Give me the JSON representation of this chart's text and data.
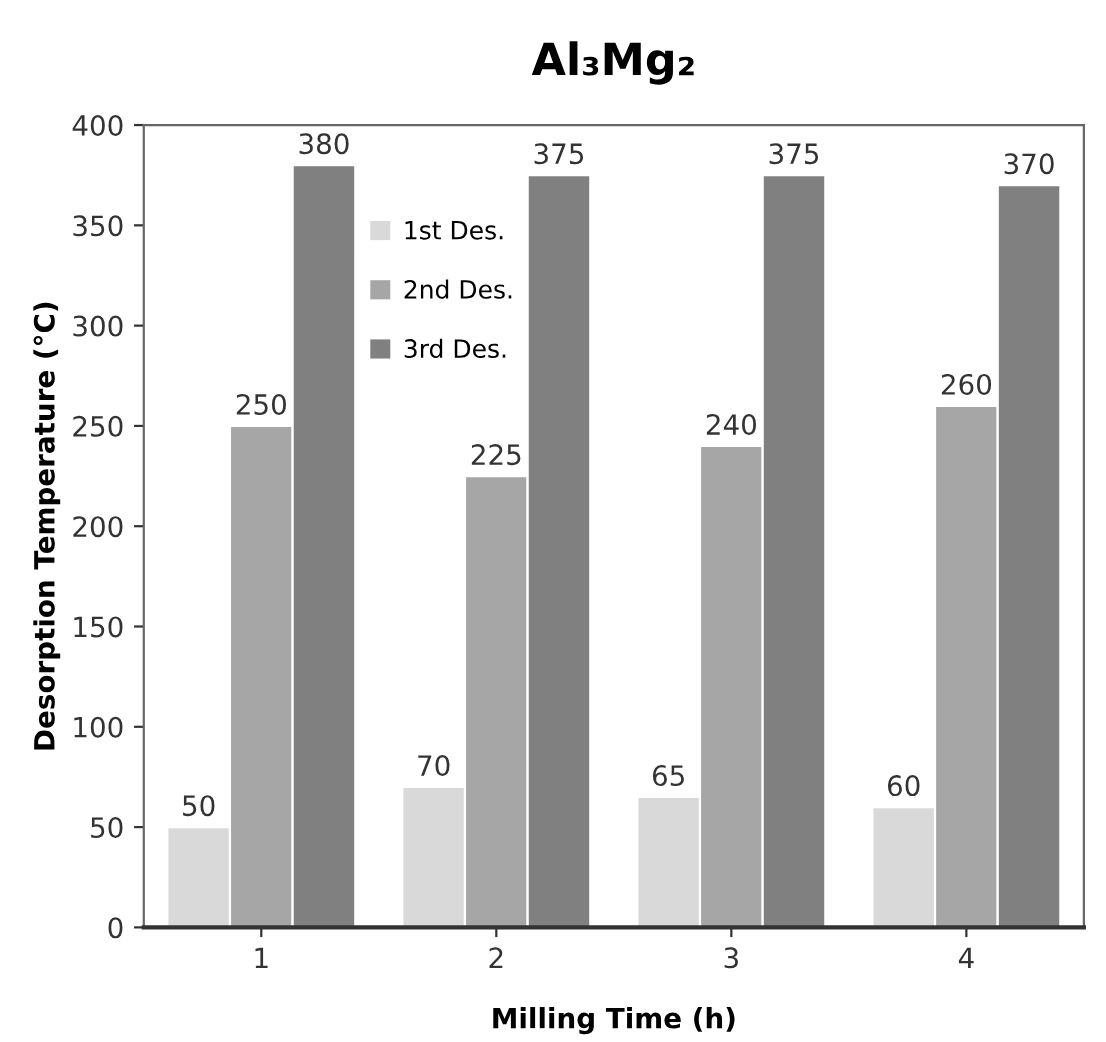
{
  "chart_data": {
    "type": "bar",
    "title": "Al₃Mg₂",
    "xlabel": "Milling Time (h)",
    "ylabel": "Desorption Temperature (°C)",
    "categories": [
      "1",
      "2",
      "3",
      "4"
    ],
    "series": [
      {
        "name": "1st Des.",
        "color": "#d9d9d9",
        "values": [
          50,
          70,
          65,
          60
        ]
      },
      {
        "name": "2nd Des.",
        "color": "#a6a6a6",
        "values": [
          250,
          225,
          240,
          260
        ]
      },
      {
        "name": "3rd Des.",
        "color": "#808080",
        "values": [
          380,
          375,
          375,
          370
        ]
      }
    ],
    "ylim": [
      0,
      400
    ],
    "yticks": [
      0,
      50,
      100,
      150,
      200,
      250,
      300,
      350,
      400
    ],
    "data_labels": true,
    "grid": false,
    "legend": "top left"
  }
}
